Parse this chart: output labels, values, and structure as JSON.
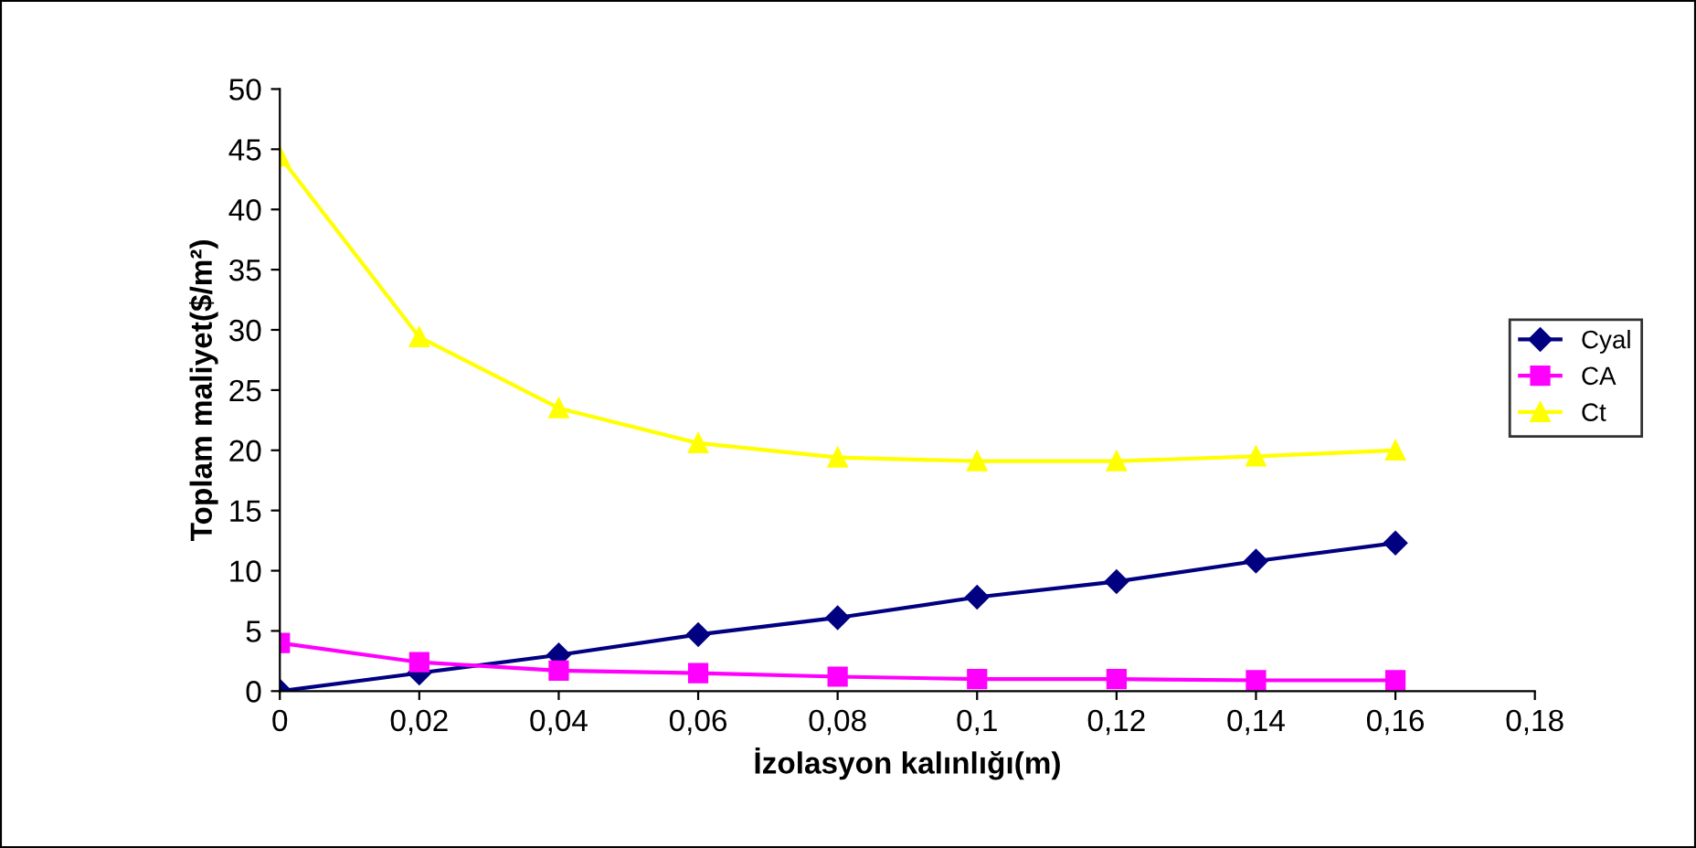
{
  "chart_data": {
    "type": "line",
    "xlabel": "İzolasyon kalınlığı(m)",
    "ylabel": "Toplam maliyet($/m²)",
    "x": [
      0,
      0.02,
      0.04,
      0.06,
      0.08,
      0.1,
      0.12,
      0.14,
      0.16
    ],
    "series": [
      {
        "name": "Cyal",
        "color": "#000080",
        "marker": "diamond",
        "values": [
          0,
          1.5,
          3.0,
          4.7,
          6.1,
          7.8,
          9.1,
          10.8,
          12.3
        ]
      },
      {
        "name": "CA",
        "color": "#ff00ff",
        "marker": "square",
        "values": [
          4.0,
          2.4,
          1.7,
          1.5,
          1.2,
          1.0,
          1.0,
          0.9,
          0.9
        ]
      },
      {
        "name": "Ct",
        "color": "#ffff00",
        "marker": "triangle",
        "values": [
          44.4,
          29.4,
          23.5,
          20.6,
          19.4,
          19.1,
          19.1,
          19.5,
          20.0
        ]
      }
    ],
    "xlim": [
      0,
      0.18
    ],
    "xticks": [
      0,
      {
        "value": 0.02,
        "label": "0,02"
      },
      {
        "value": 0.04,
        "label": "0,04"
      },
      {
        "value": 0.06,
        "label": "0,06"
      },
      {
        "value": 0.08,
        "label": "0,08"
      },
      {
        "value": 0.1,
        "label": "0,1"
      },
      {
        "value": 0.12,
        "label": "0,12"
      },
      {
        "value": 0.14,
        "label": "0,14"
      },
      {
        "value": 0.16,
        "label": "0,16"
      },
      {
        "value": 0.18,
        "label": "0,18"
      }
    ],
    "ylim": [
      0,
      50
    ],
    "yticks": [
      0,
      5,
      10,
      15,
      20,
      25,
      30,
      35,
      40,
      45,
      50
    ],
    "grid": false,
    "legend": "right",
    "line_style": "solid"
  }
}
